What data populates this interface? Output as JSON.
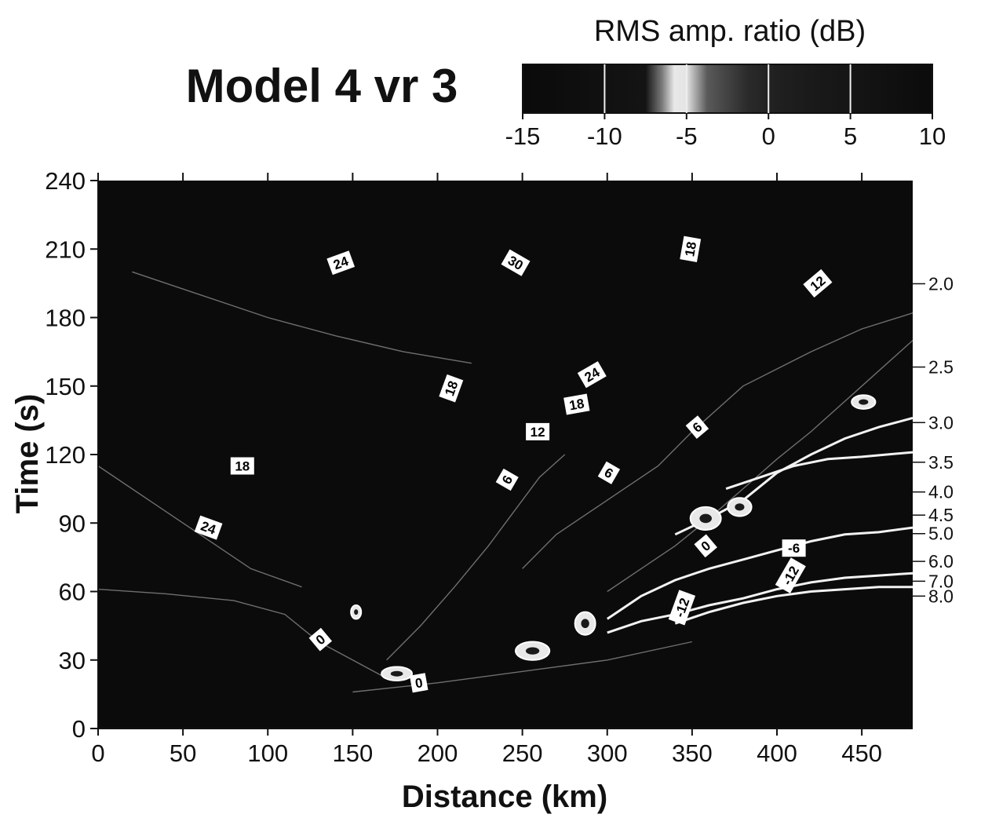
{
  "chart_data": {
    "type": "heatmap",
    "title": "Model 4 vr 3",
    "xlabel": "Distance (km)",
    "ylabel": "Time (s)",
    "xlim": [
      0,
      480
    ],
    "ylim": [
      0,
      240
    ],
    "x_ticks": [
      "0",
      "50",
      "100",
      "150",
      "200",
      "250",
      "300",
      "350",
      "400",
      "450"
    ],
    "y_ticks": [
      "0",
      "30",
      "60",
      "90",
      "120",
      "150",
      "180",
      "210",
      "240"
    ],
    "grid": false,
    "colorbar": {
      "label": "RMS amp. ratio (dB)",
      "range": [
        -15,
        10
      ],
      "ticks": [
        "-15",
        "-10",
        "-5",
        "0",
        "5",
        "10"
      ],
      "placement": "top-right"
    },
    "reduction_velocities": [
      {
        "label": "2.0",
        "value": 2.0
      },
      {
        "label": "2.5",
        "value": 2.5
      },
      {
        "label": "3.0",
        "value": 3.0
      },
      {
        "label": "3.5",
        "value": 3.5
      },
      {
        "label": "4.0",
        "value": 4.0
      },
      {
        "label": "4.5",
        "value": 4.5
      },
      {
        "label": "5.0",
        "value": 5.0
      },
      {
        "label": "6.0",
        "value": 6.0
      },
      {
        "label": "7.0",
        "value": 7.0
      },
      {
        "label": "8.0",
        "value": 8.0
      }
    ],
    "contour_labels": [
      {
        "text": "24",
        "x": 143,
        "y": 204,
        "angle": -20
      },
      {
        "text": "30",
        "x": 246,
        "y": 204,
        "angle": 30
      },
      {
        "text": "18",
        "x": 349,
        "y": 210,
        "angle": -80
      },
      {
        "text": "12",
        "x": 424,
        "y": 195,
        "angle": -40
      },
      {
        "text": "18",
        "x": 208,
        "y": 149,
        "angle": -70
      },
      {
        "text": "24",
        "x": 291,
        "y": 155,
        "angle": -30
      },
      {
        "text": "18",
        "x": 282,
        "y": 142,
        "angle": -10
      },
      {
        "text": "12",
        "x": 259,
        "y": 130,
        "angle": 0
      },
      {
        "text": "6",
        "x": 353,
        "y": 132,
        "angle": -40
      },
      {
        "text": "18",
        "x": 85,
        "y": 115,
        "angle": 0
      },
      {
        "text": "6",
        "x": 241,
        "y": 109,
        "angle": -60
      },
      {
        "text": "6",
        "x": 301,
        "y": 112,
        "angle": 30
      },
      {
        "text": "24",
        "x": 65,
        "y": 88,
        "angle": 20
      },
      {
        "text": "0",
        "x": 358,
        "y": 80,
        "angle": -40
      },
      {
        "text": "-6",
        "x": 410,
        "y": 79,
        "angle": 0
      },
      {
        "text": "-12",
        "x": 408,
        "y": 67,
        "angle": -60
      },
      {
        "text": "-12",
        "x": 344,
        "y": 53,
        "angle": -70
      },
      {
        "text": "0",
        "x": 131,
        "y": 39,
        "angle": -40
      },
      {
        "text": "0",
        "x": 189,
        "y": 20,
        "angle": -10
      }
    ],
    "contour_lines": [
      {
        "level": "0",
        "points": [
          [
            150,
            16
          ],
          [
            200,
            20
          ],
          [
            250,
            25
          ],
          [
            300,
            30
          ],
          [
            350,
            38
          ]
        ]
      },
      {
        "level": "0",
        "points": [
          [
            0,
            61
          ],
          [
            40,
            59
          ],
          [
            80,
            56
          ],
          [
            110,
            50
          ],
          [
            130,
            38
          ],
          [
            150,
            30
          ],
          [
            170,
            22
          ]
        ]
      },
      {
        "level": "0",
        "points": [
          [
            170,
            30
          ],
          [
            190,
            45
          ],
          [
            210,
            62
          ],
          [
            230,
            80
          ],
          [
            245,
            95
          ],
          [
            260,
            110
          ],
          [
            275,
            120
          ]
        ]
      },
      {
        "level": "6",
        "points": [
          [
            250,
            70
          ],
          [
            270,
            85
          ],
          [
            290,
            95
          ],
          [
            310,
            105
          ],
          [
            330,
            115
          ],
          [
            350,
            130
          ],
          [
            380,
            150
          ],
          [
            420,
            165
          ],
          [
            450,
            175
          ],
          [
            480,
            182
          ]
        ]
      },
      {
        "level": "6",
        "points": [
          [
            300,
            60
          ],
          [
            320,
            70
          ],
          [
            340,
            80
          ],
          [
            360,
            92
          ],
          [
            380,
            105
          ],
          [
            400,
            118
          ],
          [
            420,
            130
          ],
          [
            450,
            150
          ],
          [
            480,
            170
          ]
        ]
      },
      {
        "level": "-6",
        "points": [
          [
            340,
            85
          ],
          [
            360,
            92
          ],
          [
            380,
            100
          ],
          [
            400,
            112
          ],
          [
            420,
            120
          ],
          [
            440,
            127
          ],
          [
            460,
            132
          ],
          [
            480,
            136
          ]
        ]
      },
      {
        "level": "-6",
        "points": [
          [
            370,
            105
          ],
          [
            390,
            110
          ],
          [
            410,
            115
          ],
          [
            430,
            118
          ],
          [
            450,
            119
          ],
          [
            480,
            121
          ]
        ]
      },
      {
        "level": "-6",
        "points": [
          [
            300,
            48
          ],
          [
            320,
            58
          ],
          [
            340,
            65
          ],
          [
            360,
            70
          ],
          [
            380,
            74
          ],
          [
            400,
            78
          ],
          [
            420,
            82
          ],
          [
            440,
            85
          ],
          [
            460,
            86
          ],
          [
            480,
            88
          ]
        ]
      },
      {
        "level": "-12",
        "points": [
          [
            300,
            42
          ],
          [
            320,
            47
          ],
          [
            340,
            50
          ],
          [
            360,
            54
          ],
          [
            380,
            57
          ],
          [
            400,
            61
          ],
          [
            420,
            64
          ],
          [
            440,
            66
          ],
          [
            460,
            67
          ],
          [
            480,
            68
          ]
        ]
      },
      {
        "level": "-12",
        "points": [
          [
            340,
            46
          ],
          [
            360,
            51
          ],
          [
            380,
            55
          ],
          [
            400,
            58
          ],
          [
            420,
            60
          ],
          [
            440,
            61
          ],
          [
            460,
            62
          ],
          [
            480,
            62
          ]
        ]
      },
      {
        "level": "18",
        "points": [
          [
            20,
            200
          ],
          [
            60,
            190
          ],
          [
            100,
            180
          ],
          [
            140,
            172
          ],
          [
            180,
            165
          ],
          [
            220,
            160
          ]
        ]
      },
      {
        "level": "24",
        "points": [
          [
            0,
            115
          ],
          [
            30,
            100
          ],
          [
            60,
            85
          ],
          [
            90,
            70
          ],
          [
            120,
            62
          ]
        ]
      }
    ],
    "high_patches": [
      {
        "x": 176,
        "y": 24,
        "rx": 9,
        "ry": 3
      },
      {
        "x": 256,
        "y": 34,
        "rx": 10,
        "ry": 4
      },
      {
        "x": 287,
        "y": 46,
        "rx": 6,
        "ry": 5
      },
      {
        "x": 152,
        "y": 51,
        "rx": 3,
        "ry": 3
      },
      {
        "x": 358,
        "y": 92,
        "rx": 9,
        "ry": 5
      },
      {
        "x": 378,
        "y": 97,
        "rx": 7,
        "ry": 4
      },
      {
        "x": 451,
        "y": 143,
        "rx": 7,
        "ry": 3
      }
    ]
  }
}
